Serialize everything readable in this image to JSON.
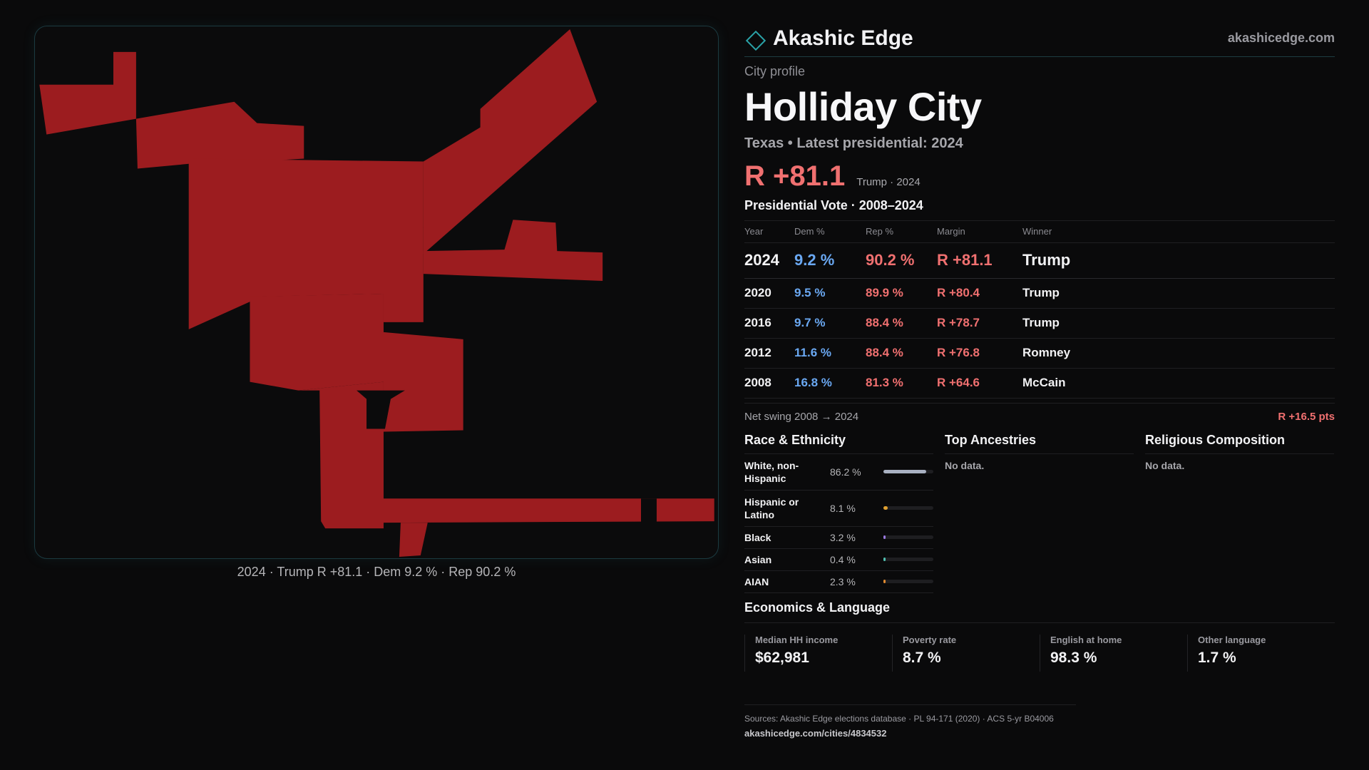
{
  "map": {
    "fill_color": "#9c1c1f",
    "caption": "2024 · Trump R +81.1 · Dem 9.2 % · Rep 90.2 %"
  },
  "header": {
    "brand": "Akashic Edge",
    "domain": "akashicedge.com"
  },
  "profile": {
    "kicker": "City profile",
    "title": "Holliday City",
    "subtitle": "Texas • Latest presidential: 2024",
    "margin": "R +81.1",
    "margin_note": "Trump · 2024"
  },
  "votes": {
    "title": "Presidential Vote · 2008–2024",
    "headers": {
      "year": "Year",
      "dem": "Dem %",
      "rep": "Rep %",
      "margin": "Margin",
      "winner": "Winner"
    },
    "rows": [
      {
        "year": "2024",
        "dem": "9.2 %",
        "rep": "90.2 %",
        "margin": "R +81.1",
        "winner": "Trump"
      },
      {
        "year": "2020",
        "dem": "9.5 %",
        "rep": "89.9 %",
        "margin": "R +80.4",
        "winner": "Trump"
      },
      {
        "year": "2016",
        "dem": "9.7 %",
        "rep": "88.4 %",
        "margin": "R +78.7",
        "winner": "Trump"
      },
      {
        "year": "2012",
        "dem": "11.6 %",
        "rep": "88.4 %",
        "margin": "R +76.8",
        "winner": "Romney"
      },
      {
        "year": "2008",
        "dem": "16.8 %",
        "rep": "81.3 %",
        "margin": "R +64.6",
        "winner": "McCain"
      }
    ],
    "swing_label": "Net swing 2008 → 2024",
    "swing_value": "R +16.5 pts"
  },
  "race": {
    "title": "Race & Ethnicity",
    "rows": [
      {
        "label": "White, non-Hispanic",
        "value": "86.2 %",
        "pct": 86.2,
        "color": "#a9b1c2"
      },
      {
        "label": "Hispanic or Latino",
        "value": "8.1 %",
        "pct": 8.1,
        "color": "#e0a030"
      },
      {
        "label": "Black",
        "value": "3.2 %",
        "pct": 3.2,
        "color": "#9a7ae0"
      },
      {
        "label": "Asian",
        "value": "0.4 %",
        "pct": 0.4,
        "color": "#50c0b0"
      },
      {
        "label": "AIAN",
        "value": "2.3 %",
        "pct": 2.3,
        "color": "#e08a30"
      }
    ]
  },
  "ancestries": {
    "title": "Top Ancestries",
    "empty": "No data."
  },
  "religion": {
    "title": "Religious Composition",
    "empty": "No data."
  },
  "economics": {
    "title": "Economics & Language",
    "cells": [
      {
        "label": "Median HH income",
        "value": "$62,981"
      },
      {
        "label": "Poverty rate",
        "value": "8.7 %"
      },
      {
        "label": "English at home",
        "value": "98.3 %"
      },
      {
        "label": "Other language",
        "value": "1.7 %"
      }
    ]
  },
  "footer": {
    "sources": "Sources: Akashic Edge elections database · PL 94-171 (2020) · ACS 5-yr B04006",
    "url": "akashicedge.com/cities/4834532"
  }
}
